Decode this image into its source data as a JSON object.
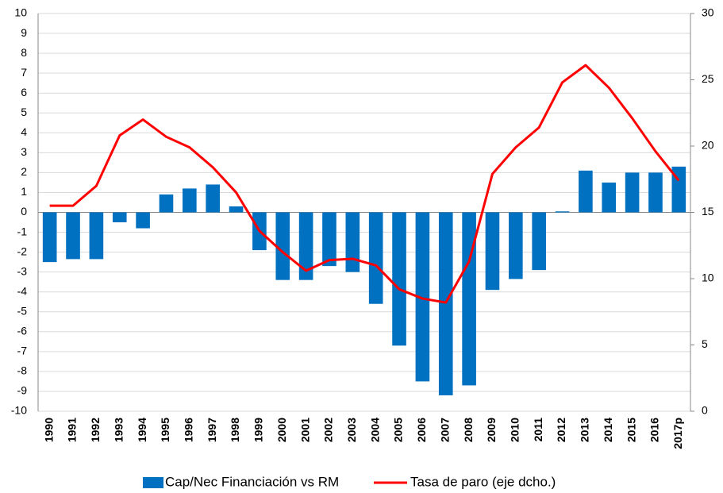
{
  "chart_data": {
    "type": "bar",
    "categories": [
      "1990",
      "1991",
      "1992",
      "1993",
      "1994",
      "1995",
      "1996",
      "1997",
      "1998",
      "1999",
      "2000",
      "2001",
      "2002",
      "2003",
      "2004",
      "2005",
      "2006",
      "2007",
      "2008",
      "2009",
      "2010",
      "2011",
      "2012",
      "2013",
      "2014",
      "2015",
      "2016",
      "2017p"
    ],
    "series": [
      {
        "name": "Cap/Nec Financiación vs RM",
        "type": "bar",
        "color": "#0070c0",
        "values": [
          -2.5,
          -2.35,
          -2.35,
          -0.5,
          -0.8,
          0.9,
          1.2,
          1.4,
          0.3,
          -1.9,
          -3.4,
          -3.4,
          -2.7,
          -3.0,
          -4.6,
          -6.7,
          -8.5,
          -9.2,
          -8.7,
          -3.9,
          -3.35,
          -2.9,
          0.05,
          2.1,
          1.5,
          2.0,
          2.0,
          2.3
        ]
      },
      {
        "name": "Tasa de paro (eje dcho.)",
        "type": "line",
        "color": "#ff0000",
        "axis": "y2",
        "values": [
          15.5,
          15.5,
          17.0,
          20.8,
          22.0,
          20.7,
          19.9,
          18.4,
          16.5,
          13.6,
          12.0,
          10.6,
          11.4,
          11.5,
          11.0,
          9.2,
          8.5,
          8.2,
          11.3,
          17.9,
          19.9,
          21.4,
          24.8,
          26.1,
          24.4,
          22.1,
          19.6,
          17.4
        ]
      }
    ],
    "ylim": [
      -10,
      10
    ],
    "yticks": [
      -10,
      -9,
      -8,
      -7,
      -6,
      -5,
      -4,
      -3,
      -2,
      -1,
      0,
      1,
      2,
      3,
      4,
      5,
      6,
      7,
      8,
      9,
      10
    ],
    "y2lim": [
      0,
      30
    ],
    "y2ticks": [
      0,
      5,
      10,
      15,
      20,
      25,
      30
    ],
    "grid": true,
    "legend": "bottom"
  }
}
